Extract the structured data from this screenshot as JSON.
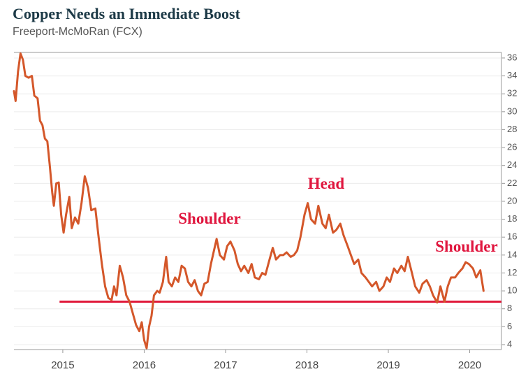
{
  "chart_data": {
    "type": "line",
    "title": "Copper Needs an Immediate Boost",
    "subtitle": "Freeport-McMoRan (FCX)",
    "xlim": [
      2014.4,
      2020.39
    ],
    "xticks": [
      2015,
      2016,
      2017,
      2018,
      2019,
      2020
    ],
    "ylim": [
      3.45,
      36.62
    ],
    "yticks": [
      4,
      6,
      8,
      10,
      12,
      14,
      16,
      18,
      20,
      22,
      24,
      26,
      28,
      30,
      32,
      34,
      36
    ],
    "grid": true,
    "series": [
      {
        "name": "FCX",
        "color": "#d4572a",
        "x": [
          2014.4,
          2014.42,
          2014.45,
          2014.48,
          2014.51,
          2014.54,
          2014.58,
          2014.62,
          2014.65,
          2014.69,
          2014.72,
          2014.75,
          2014.78,
          2014.81,
          2014.84,
          2014.87,
          2014.89,
          2014.92,
          2014.95,
          2014.98,
          2015.01,
          2015.04,
          2015.08,
          2015.11,
          2015.15,
          2015.19,
          2015.23,
          2015.27,
          2015.31,
          2015.35,
          2015.4,
          2015.44,
          2015.48,
          2015.52,
          2015.56,
          2015.6,
          2015.63,
          2015.66,
          2015.7,
          2015.74,
          2015.78,
          2015.82,
          2015.86,
          2015.9,
          2015.94,
          2015.97,
          2016.0,
          2016.03,
          2016.06,
          2016.09,
          2016.12,
          2016.16,
          2016.19,
          2016.23,
          2016.27,
          2016.3,
          2016.34,
          2016.38,
          2016.42,
          2016.46,
          2016.5,
          2016.54,
          2016.58,
          2016.62,
          2016.66,
          2016.7,
          2016.74,
          2016.78,
          2016.82,
          2016.89,
          2016.93,
          2016.98,
          2017.02,
          2017.06,
          2017.11,
          2017.15,
          2017.19,
          2017.23,
          2017.28,
          2017.32,
          2017.36,
          2017.41,
          2017.45,
          2017.49,
          2017.54,
          2017.58,
          2017.62,
          2017.67,
          2017.71,
          2017.75,
          2017.8,
          2017.84,
          2017.88,
          2017.92,
          2017.97,
          2018.01,
          2018.05,
          2018.1,
          2018.14,
          2018.19,
          2018.23,
          2018.27,
          2018.32,
          2018.36,
          2018.41,
          2018.45,
          2018.5,
          2018.54,
          2018.58,
          2018.63,
          2018.67,
          2018.72,
          2018.76,
          2018.8,
          2018.85,
          2018.89,
          2018.94,
          2018.98,
          2019.02,
          2019.07,
          2019.11,
          2019.16,
          2019.2,
          2019.24,
          2019.29,
          2019.33,
          2019.38,
          2019.42,
          2019.47,
          2019.51,
          2019.55,
          2019.6,
          2019.64,
          2019.69,
          2019.73,
          2019.77,
          2019.82,
          2019.86,
          2019.91,
          2019.95,
          2019.99,
          2020.04,
          2020.08,
          2020.13,
          2020.17
        ],
        "values": [
          32.3,
          31.2,
          34.5,
          36.5,
          35.8,
          34,
          33.8,
          34,
          31.8,
          31.5,
          29,
          28.5,
          27,
          26.7,
          24,
          21,
          19.5,
          22,
          22.1,
          18.5,
          16.5,
          18.5,
          20.5,
          17,
          18.2,
          17.5,
          19.8,
          22.8,
          21.5,
          19,
          19.2,
          16,
          13,
          10.5,
          9.2,
          9,
          10.5,
          9.5,
          12.8,
          11.5,
          9.5,
          8.8,
          7.5,
          6.2,
          5.5,
          6.5,
          4.5,
          3.6,
          6,
          7.2,
          9.5,
          10,
          9.8,
          11,
          13.8,
          11,
          10.5,
          11.5,
          11,
          12.8,
          12.5,
          11,
          10.5,
          11.2,
          10,
          9.5,
          10.8,
          11,
          13,
          15.8,
          14,
          13.5,
          15,
          15.5,
          14.5,
          13,
          12.2,
          12.8,
          12,
          13,
          11.5,
          11.3,
          12,
          11.8,
          13.5,
          14.8,
          13.5,
          14,
          14,
          14.3,
          13.8,
          14,
          14.5,
          16,
          18.5,
          19.8,
          18,
          17.5,
          19.5,
          17.5,
          17,
          18.5,
          16.5,
          16.8,
          17.5,
          16.2,
          15,
          14,
          13,
          13.5,
          12,
          11.5,
          11,
          10.5,
          11,
          10,
          10.5,
          11.5,
          11,
          12.5,
          12,
          12.8,
          12.2,
          13.8,
          12,
          10.5,
          9.8,
          10.8,
          11.2,
          10.5,
          9.5,
          8.7,
          10.5,
          8.8,
          10.5,
          11.5,
          11.5,
          12,
          12.5,
          13.2,
          13,
          12.5,
          11.5,
          12.3,
          10
        ]
      }
    ],
    "support_line": {
      "x": [
        2014.96,
        2020.39
      ],
      "y": 8.8,
      "color": "#e0193a"
    },
    "annotations": [
      "Shoulder",
      "Head",
      "Shoulder"
    ]
  }
}
